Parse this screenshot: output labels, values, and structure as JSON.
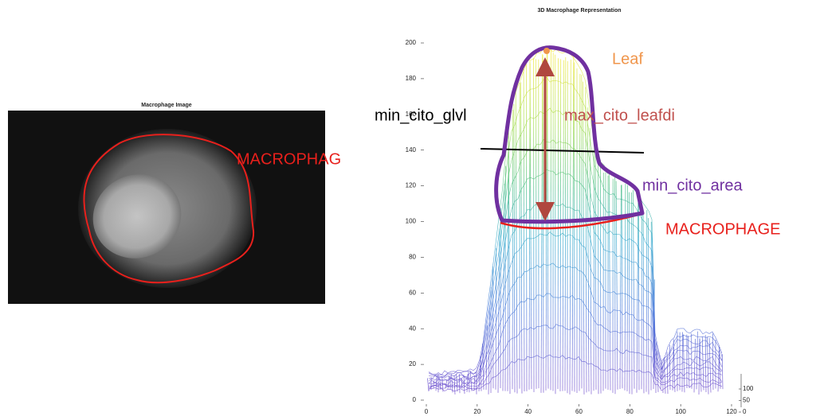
{
  "left_panel": {
    "title": "Macrophage Image",
    "label": "MACROPHAG"
  },
  "right_panel": {
    "title": "3D Macrophage Representation",
    "ylim": [
      0,
      200
    ],
    "yticks": [
      0,
      20,
      40,
      60,
      80,
      100,
      120,
      140,
      160,
      180,
      200
    ],
    "xlim": [
      0,
      120
    ],
    "xticks": [
      0,
      20,
      40,
      60,
      80,
      100,
      120
    ],
    "zlim": [
      0,
      100
    ],
    "zticks": [
      0,
      50,
      100
    ]
  },
  "annotations": {
    "leaf": "Leaf",
    "glvl": "min_cito_glvl",
    "leafdi": "max_cito_leafdi",
    "area": "min_cito_area",
    "macrophage": "MACROPHAGE"
  }
}
